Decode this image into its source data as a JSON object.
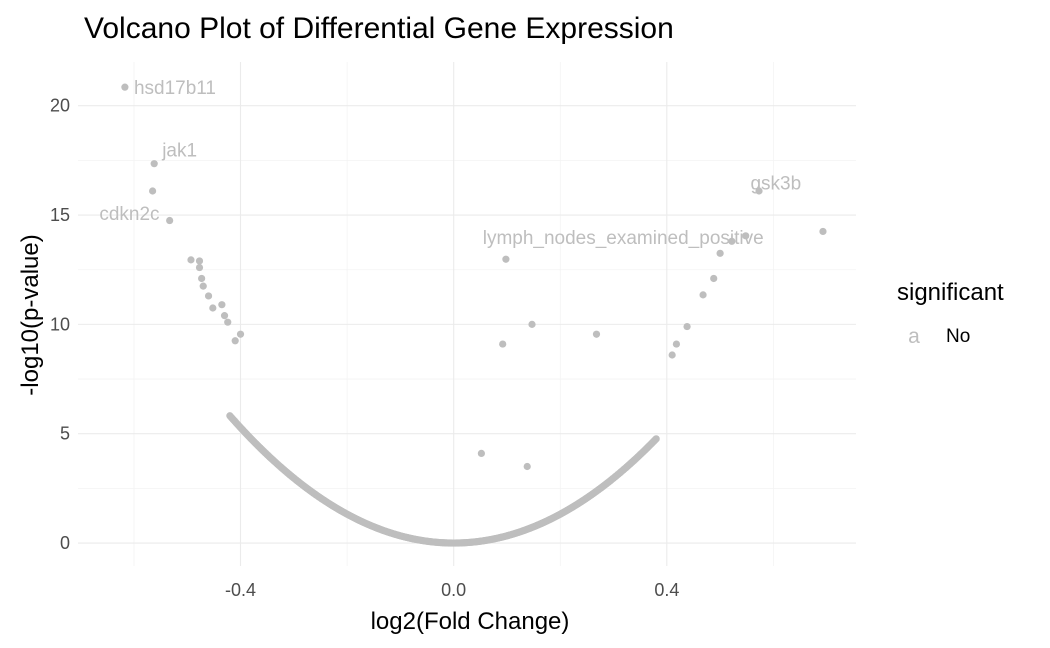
{
  "chart_data": {
    "type": "scatter",
    "title": "Volcano Plot of Differential Gene Expression",
    "xlabel": "log2(Fold Change)",
    "ylabel": "-log10(p-value)",
    "xlim": [
      -0.705,
      0.755
    ],
    "ylim": [
      -1.05,
      22.0
    ],
    "x_ticks": [
      -0.4,
      0.0,
      0.4
    ],
    "x_tick_labels": [
      "-0.4",
      "0.0",
      "0.4"
    ],
    "x_minor_ticks": [
      -0.6,
      -0.2,
      0.2,
      0.6
    ],
    "y_ticks": [
      0,
      5,
      10,
      15,
      20
    ],
    "y_tick_labels": [
      "0",
      "5",
      "10",
      "15",
      "20"
    ],
    "y_minor_ticks": [
      2.5,
      7.5,
      12.5,
      17.5
    ],
    "grid": true,
    "point_color": "#bebebe",
    "label_color": "#bebebe",
    "legend": {
      "title": "significant",
      "position": "right",
      "items": [
        {
          "key": "a",
          "label": "No",
          "color": "#bebebe"
        }
      ]
    },
    "curve_points": {
      "shape": "y = 33 * x^2 (dense V-shaped distribution of genes)",
      "x_min": -0.42,
      "x_max": 0.38,
      "count": 440
    },
    "points": [
      {
        "x": -0.617,
        "y": 20.85
      },
      {
        "x": -0.562,
        "y": 17.35
      },
      {
        "x": -0.565,
        "y": 16.1
      },
      {
        "x": -0.533,
        "y": 14.75
      },
      {
        "x": -0.493,
        "y": 12.95
      },
      {
        "x": -0.477,
        "y": 12.9
      },
      {
        "x": -0.477,
        "y": 12.6
      },
      {
        "x": -0.473,
        "y": 12.1
      },
      {
        "x": -0.47,
        "y": 11.75
      },
      {
        "x": -0.46,
        "y": 11.3
      },
      {
        "x": -0.452,
        "y": 10.75
      },
      {
        "x": -0.435,
        "y": 10.9
      },
      {
        "x": -0.43,
        "y": 10.4
      },
      {
        "x": -0.424,
        "y": 10.1
      },
      {
        "x": -0.4,
        "y": 9.55
      },
      {
        "x": -0.41,
        "y": 9.25
      },
      {
        "x": 0.098,
        "y": 12.98
      },
      {
        "x": 0.147,
        "y": 10.0
      },
      {
        "x": 0.092,
        "y": 9.1
      },
      {
        "x": 0.268,
        "y": 9.55
      },
      {
        "x": 0.052,
        "y": 4.1
      },
      {
        "x": 0.138,
        "y": 3.5
      },
      {
        "x": 0.438,
        "y": 9.9
      },
      {
        "x": 0.418,
        "y": 9.1
      },
      {
        "x": 0.41,
        "y": 8.6
      },
      {
        "x": 0.468,
        "y": 11.35
      },
      {
        "x": 0.488,
        "y": 12.1
      },
      {
        "x": 0.5,
        "y": 13.25
      },
      {
        "x": 0.522,
        "y": 13.8
      },
      {
        "x": 0.548,
        "y": 14.05
      },
      {
        "x": 0.573,
        "y": 16.1
      },
      {
        "x": 0.693,
        "y": 14.25
      }
    ],
    "annotations": [
      {
        "text": "hsd17b11",
        "x": -0.6,
        "y": 20.85,
        "anchor": "start"
      },
      {
        "text": "jak1",
        "x": -0.547,
        "y": 18.0,
        "anchor": "start"
      },
      {
        "text": "cdkn2c",
        "x": -0.665,
        "y": 15.1,
        "anchor": "start"
      },
      {
        "text": "gsk3b",
        "x": 0.557,
        "y": 16.5,
        "anchor": "start"
      },
      {
        "text": "lymph_nodes_examined_positive",
        "x": 0.0545,
        "y": 14.0,
        "anchor": "start"
      }
    ]
  }
}
